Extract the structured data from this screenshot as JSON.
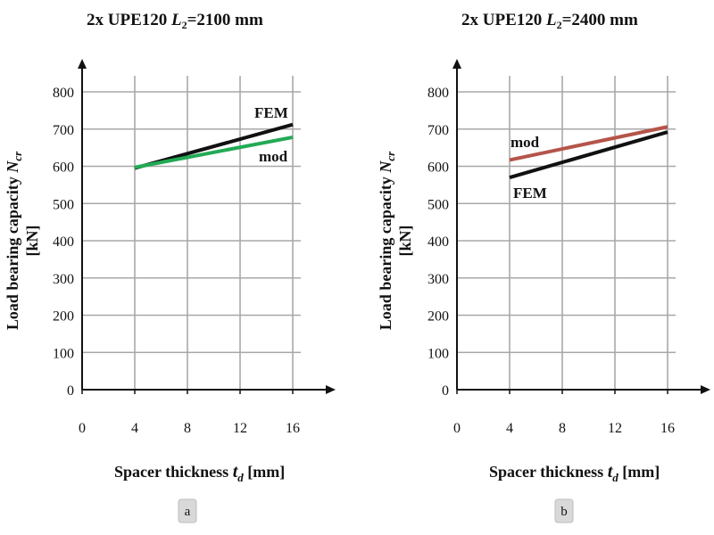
{
  "chart_data": [
    {
      "type": "line",
      "panel_label": "a",
      "title_main": "2x UPE120 ",
      "title_var": "L",
      "title_sub": "2",
      "title_value": "=2100 mm",
      "xlabel_main": "Spacer thickness ",
      "xlabel_var": "t",
      "xlabel_sub": "d",
      "xlabel_unit": "  [mm]",
      "ylabel_main": "Load bearing capacity ",
      "ylabel_var": "N",
      "ylabel_sub": "cr",
      "ylabel_unit": "[kN]",
      "x_ticks": [
        "0",
        "4",
        "8",
        "12",
        "16"
      ],
      "y_ticks": [
        "0",
        "100",
        "200",
        "300",
        "400",
        "500",
        "600",
        "700",
        "800"
      ],
      "xlim": [
        0,
        16
      ],
      "ylim": [
        0,
        800
      ],
      "grid": "horizontal",
      "series": [
        {
          "name": "FEM",
          "color": "#111111",
          "x": [
            4,
            16
          ],
          "y": [
            595,
            712
          ]
        },
        {
          "name": "mod",
          "color": "#22aa55",
          "x": [
            4,
            16
          ],
          "y": [
            597,
            678
          ]
        }
      ]
    },
    {
      "type": "line",
      "panel_label": "b",
      "title_main": "2x UPE120 ",
      "title_var": "L",
      "title_sub": "2",
      "title_value": "=2400 mm",
      "xlabel_main": "Spacer thickness ",
      "xlabel_var": "t",
      "xlabel_sub": "d",
      "xlabel_unit": "  [mm]",
      "ylabel_main": "Load bearing capacity ",
      "ylabel_var": "N",
      "ylabel_sub": "cr",
      "ylabel_unit": "[kN]",
      "x_ticks": [
        "0",
        "4",
        "8",
        "12",
        "16"
      ],
      "y_ticks": [
        "0",
        "100",
        "200",
        "300",
        "400",
        "500",
        "600",
        "700",
        "800"
      ],
      "xlim": [
        0,
        16
      ],
      "ylim": [
        0,
        800
      ],
      "grid": "horizontal",
      "series": [
        {
          "name": "mod",
          "color": "#b5544a",
          "x": [
            4,
            16
          ],
          "y": [
            617,
            706
          ]
        },
        {
          "name": "FEM",
          "color": "#111111",
          "x": [
            4,
            16
          ],
          "y": [
            570,
            692
          ]
        }
      ]
    }
  ]
}
